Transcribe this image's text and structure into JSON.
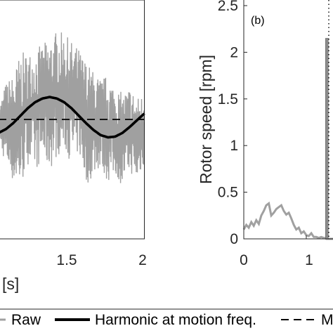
{
  "chart_data": [
    {
      "type": "line",
      "xlim": [
        1.0,
        2.0
      ],
      "ylim": [
        -1.6,
        1.6
      ],
      "xticks": [
        "1.5",
        "2"
      ],
      "xlabel_fragment": "[s]",
      "series": [
        {
          "name": "Raw",
          "color": "#a0a0a0",
          "style": "solid"
        },
        {
          "name": "Harmonic at motion freq.",
          "color": "#000000",
          "style": "solid",
          "x": [
            1.0,
            1.05,
            1.1,
            1.15,
            1.2,
            1.25,
            1.3,
            1.35,
            1.4,
            1.45,
            1.5,
            1.55,
            1.6,
            1.65,
            1.7,
            1.75,
            1.8,
            1.85,
            1.9,
            1.95,
            2.0
          ],
          "y": [
            -0.18,
            -0.13,
            -0.05,
            0.05,
            0.15,
            0.23,
            0.28,
            0.3,
            0.28,
            0.23,
            0.15,
            0.05,
            -0.05,
            -0.14,
            -0.21,
            -0.24,
            -0.23,
            -0.18,
            -0.1,
            -0.01,
            0.08
          ]
        },
        {
          "name": "M",
          "color": "#000000",
          "style": "dashed",
          "y": [
            0.0
          ]
        }
      ],
      "raw_signal": {
        "x": [
          1.0,
          1.05,
          1.1,
          1.15,
          1.2,
          1.25,
          1.3,
          1.35,
          1.4,
          1.45,
          1.5,
          1.55,
          1.6,
          1.65,
          1.7,
          1.75,
          1.8,
          1.85,
          1.9,
          1.95,
          2.0
        ],
        "y_max": [
          0.15,
          0.5,
          0.6,
          0.9,
          0.9,
          0.95,
          1.0,
          1.1,
          1.2,
          1.15,
          1.05,
          0.95,
          0.8,
          0.65,
          0.55,
          0.6,
          0.45,
          0.35,
          0.45,
          0.3,
          0.35
        ],
        "y_min": [
          -0.35,
          -0.6,
          -0.85,
          -0.95,
          -0.6,
          -0.7,
          -0.55,
          -0.7,
          -0.5,
          -0.4,
          -0.6,
          -0.45,
          -0.9,
          -0.75,
          -0.65,
          -0.85,
          -0.75,
          -0.9,
          -0.7,
          -0.85,
          -0.6
        ]
      }
    },
    {
      "type": "line",
      "panel_label": "(b)",
      "ylabel": "Rotor speed [rpm]",
      "xlim": [
        0,
        1.45
      ],
      "ylim": [
        0,
        2.5
      ],
      "xticks": [
        "0",
        "1"
      ],
      "yticks": [
        "0",
        "0.5",
        "1",
        "1.5",
        "2",
        "2.5"
      ],
      "spectrum": {
        "x": [
          0.0,
          0.04,
          0.08,
          0.12,
          0.16,
          0.2,
          0.24,
          0.28,
          0.32,
          0.36,
          0.4,
          0.44,
          0.48,
          0.52,
          0.56,
          0.6,
          0.64,
          0.68,
          0.72,
          0.76,
          0.8,
          0.84,
          0.88,
          0.92,
          0.96,
          1.0,
          1.04,
          1.08,
          1.12,
          1.16,
          1.2,
          1.24,
          1.28,
          1.3,
          1.32,
          1.34,
          1.36,
          1.4,
          1.45
        ],
        "y": [
          0.1,
          0.15,
          0.12,
          0.18,
          0.14,
          0.2,
          0.16,
          0.25,
          0.3,
          0.36,
          0.38,
          0.25,
          0.28,
          0.32,
          0.34,
          0.36,
          0.3,
          0.26,
          0.28,
          0.22,
          0.15,
          0.1,
          0.12,
          0.06,
          0.08,
          0.04,
          0.03,
          0.06,
          0.02,
          0.02,
          0.01,
          0.02,
          0.01,
          0.01,
          0.0,
          0.0,
          0.0,
          0.0,
          0.0
        ]
      },
      "peak": {
        "x": 1.33,
        "y": 2.15
      },
      "motion_freq_marker": 1.36
    }
  ]
}
